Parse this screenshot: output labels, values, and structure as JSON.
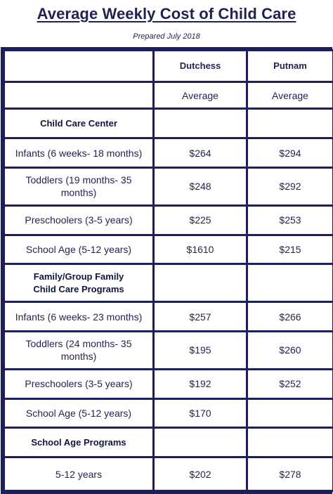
{
  "title": "Average Weekly Cost of Child Care",
  "subtitle": "Prepared July 2018",
  "columns": {
    "col1": "Dutchess",
    "col2": "Putnam",
    "sub1": "Average",
    "sub2": "Average"
  },
  "sections": {
    "center": {
      "label": "Child Care Center",
      "rows": [
        {
          "label": "Infants (6 weeks- 18 months)",
          "dutchess": "$264",
          "putnam": "$294"
        },
        {
          "label": "Toddlers (19 months- 35 months)",
          "dutchess": "$248",
          "putnam": "$292"
        },
        {
          "label": "Preschoolers (3-5 years)",
          "dutchess": "$225",
          "putnam": "$253"
        },
        {
          "label": "School Age (5-12 years)",
          "dutchess": "$1610",
          "putnam": "$215"
        }
      ]
    },
    "family": {
      "label_line1": "Family/Group Family",
      "label_line2": "Child Care Programs",
      "rows": [
        {
          "label": "Infants (6 weeks- 23 months)",
          "dutchess": "$257",
          "putnam": "$266"
        },
        {
          "label": "Toddlers (24 months- 35 months)",
          "dutchess": "$195",
          "putnam": "$260"
        },
        {
          "label": "Preschoolers (3-5 years)",
          "dutchess": "$192",
          "putnam": "$252"
        },
        {
          "label": "School Age (5-12 years)",
          "dutchess": "$170",
          "putnam": ""
        }
      ]
    },
    "school": {
      "label": "School Age Programs",
      "rows": [
        {
          "label": "5-12 years",
          "dutchess": "$202",
          "putnam": "$278"
        }
      ]
    }
  }
}
